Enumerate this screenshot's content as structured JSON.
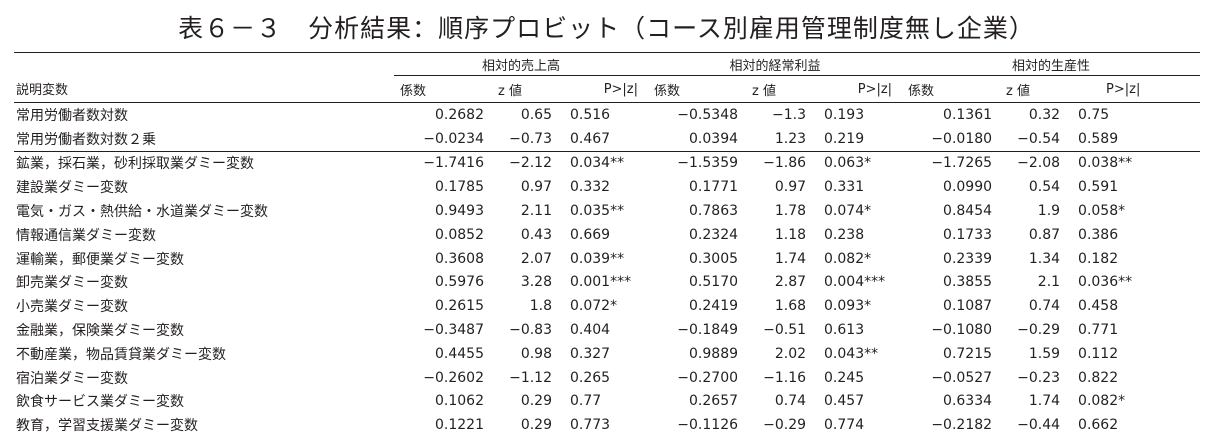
{
  "title": "表６－３　分析結果：順序プロビット（コース別雇用管理制度無し企業）",
  "groups": [
    "相対的売上高",
    "相対的経常利益",
    "相対的生産性"
  ],
  "header": {
    "variable": "説明変数",
    "coef": "係数",
    "z": "z 値",
    "p": "P>|z|"
  },
  "rows": [
    {
      "name": "常用労働者数対数",
      "cells": [
        "0.2682",
        "0.65",
        "0.516",
        "−0.5348",
        "−1.3",
        "0.193",
        "0.1361",
        "0.32",
        "0.75"
      ]
    },
    {
      "name": "常用労働者数対数２乗",
      "cells": [
        "−0.0234",
        "−0.73",
        "0.467",
        "0.0394",
        "1.23",
        "0.219",
        "−0.0180",
        "−0.54",
        "0.589"
      ]
    },
    {
      "name": "鉱業，採石業，砂利採取業ダミー変数",
      "cells": [
        "−1.7416",
        "−2.12",
        "0.034**",
        "−1.5359",
        "−1.86",
        "0.063*",
        "−1.7265",
        "−2.08",
        "0.038**"
      ]
    },
    {
      "name": "建設業ダミー変数",
      "cells": [
        "0.1785",
        "0.97",
        "0.332",
        "0.1771",
        "0.97",
        "0.331",
        "0.0990",
        "0.54",
        "0.591"
      ]
    },
    {
      "name": "電気・ガス・熱供給・水道業ダミー変数",
      "cells": [
        "0.9493",
        "2.11",
        "0.035**",
        "0.7863",
        "1.78",
        "0.074*",
        "0.8454",
        "1.9",
        "0.058*"
      ]
    },
    {
      "name": "情報通信業ダミー変数",
      "cells": [
        "0.0852",
        "0.43",
        "0.669",
        "0.2324",
        "1.18",
        "0.238",
        "0.1733",
        "0.87",
        "0.386"
      ]
    },
    {
      "name": "運輸業，郵便業ダミー変数",
      "cells": [
        "0.3608",
        "2.07",
        "0.039**",
        "0.3005",
        "1.74",
        "0.082*",
        "0.2339",
        "1.34",
        "0.182"
      ]
    },
    {
      "name": "卸売業ダミー変数",
      "cells": [
        "0.5976",
        "3.28",
        "0.001***",
        "0.5170",
        "2.87",
        "0.004***",
        "0.3855",
        "2.1",
        "0.036**"
      ]
    },
    {
      "name": "小売業ダミー変数",
      "cells": [
        "0.2615",
        "1.8",
        "0.072*",
        "0.2419",
        "1.68",
        "0.093*",
        "0.1087",
        "0.74",
        "0.458"
      ]
    },
    {
      "name": "金融業，保険業ダミー変数",
      "cells": [
        "−0.3487",
        "−0.83",
        "0.404",
        "−0.1849",
        "−0.51",
        "0.613",
        "−0.1080",
        "−0.29",
        "0.771"
      ]
    },
    {
      "name": "不動産業，物品賃貸業ダミー変数",
      "cells": [
        "0.4455",
        "0.98",
        "0.327",
        "0.9889",
        "2.02",
        "0.043**",
        "0.7215",
        "1.59",
        "0.112"
      ]
    },
    {
      "name": "宿泊業ダミー変数",
      "cells": [
        "−0.2602",
        "−1.12",
        "0.265",
        "−0.2700",
        "−1.16",
        "0.245",
        "−0.0527",
        "−0.23",
        "0.822"
      ]
    },
    {
      "name": "飲食サービス業ダミー変数",
      "cells": [
        "0.1062",
        "0.29",
        "0.77",
        "0.2657",
        "0.74",
        "0.457",
        "0.6334",
        "1.74",
        "0.082*"
      ]
    },
    {
      "name": "教育，学習支援業ダミー変数",
      "cells": [
        "0.1221",
        "0.29",
        "0.773",
        "−0.1126",
        "−0.29",
        "0.774",
        "−0.2182",
        "−0.44",
        "0.662"
      ]
    }
  ]
}
